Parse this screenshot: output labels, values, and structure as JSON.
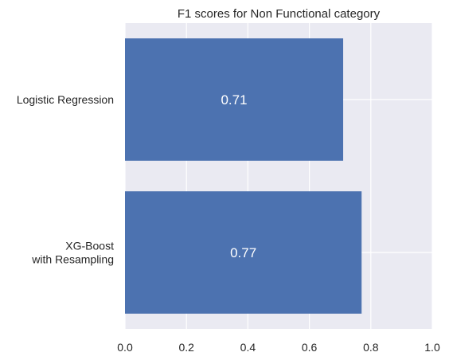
{
  "chart_data": {
    "type": "bar",
    "orientation": "horizontal",
    "title": "F1 scores for Non Functional category",
    "xlabel": "",
    "ylabel": "",
    "categories": [
      [
        "Logistic Regression"
      ],
      [
        "XG-Boost",
        "with Resampling"
      ]
    ],
    "values": [
      0.71,
      0.77
    ],
    "value_labels": [
      "0.71",
      "0.77"
    ],
    "xlim": [
      0.0,
      1.0
    ],
    "xticks": [
      0.0,
      0.2,
      0.4,
      0.6,
      0.8,
      1.0
    ],
    "xtick_labels": [
      "0.0",
      "0.2",
      "0.4",
      "0.6",
      "0.8",
      "1.0"
    ],
    "grid": true,
    "colors": {
      "bar": "#4c72b0",
      "background": "#eaeaf2",
      "grid": "#ffffff",
      "text": "#262626"
    }
  }
}
